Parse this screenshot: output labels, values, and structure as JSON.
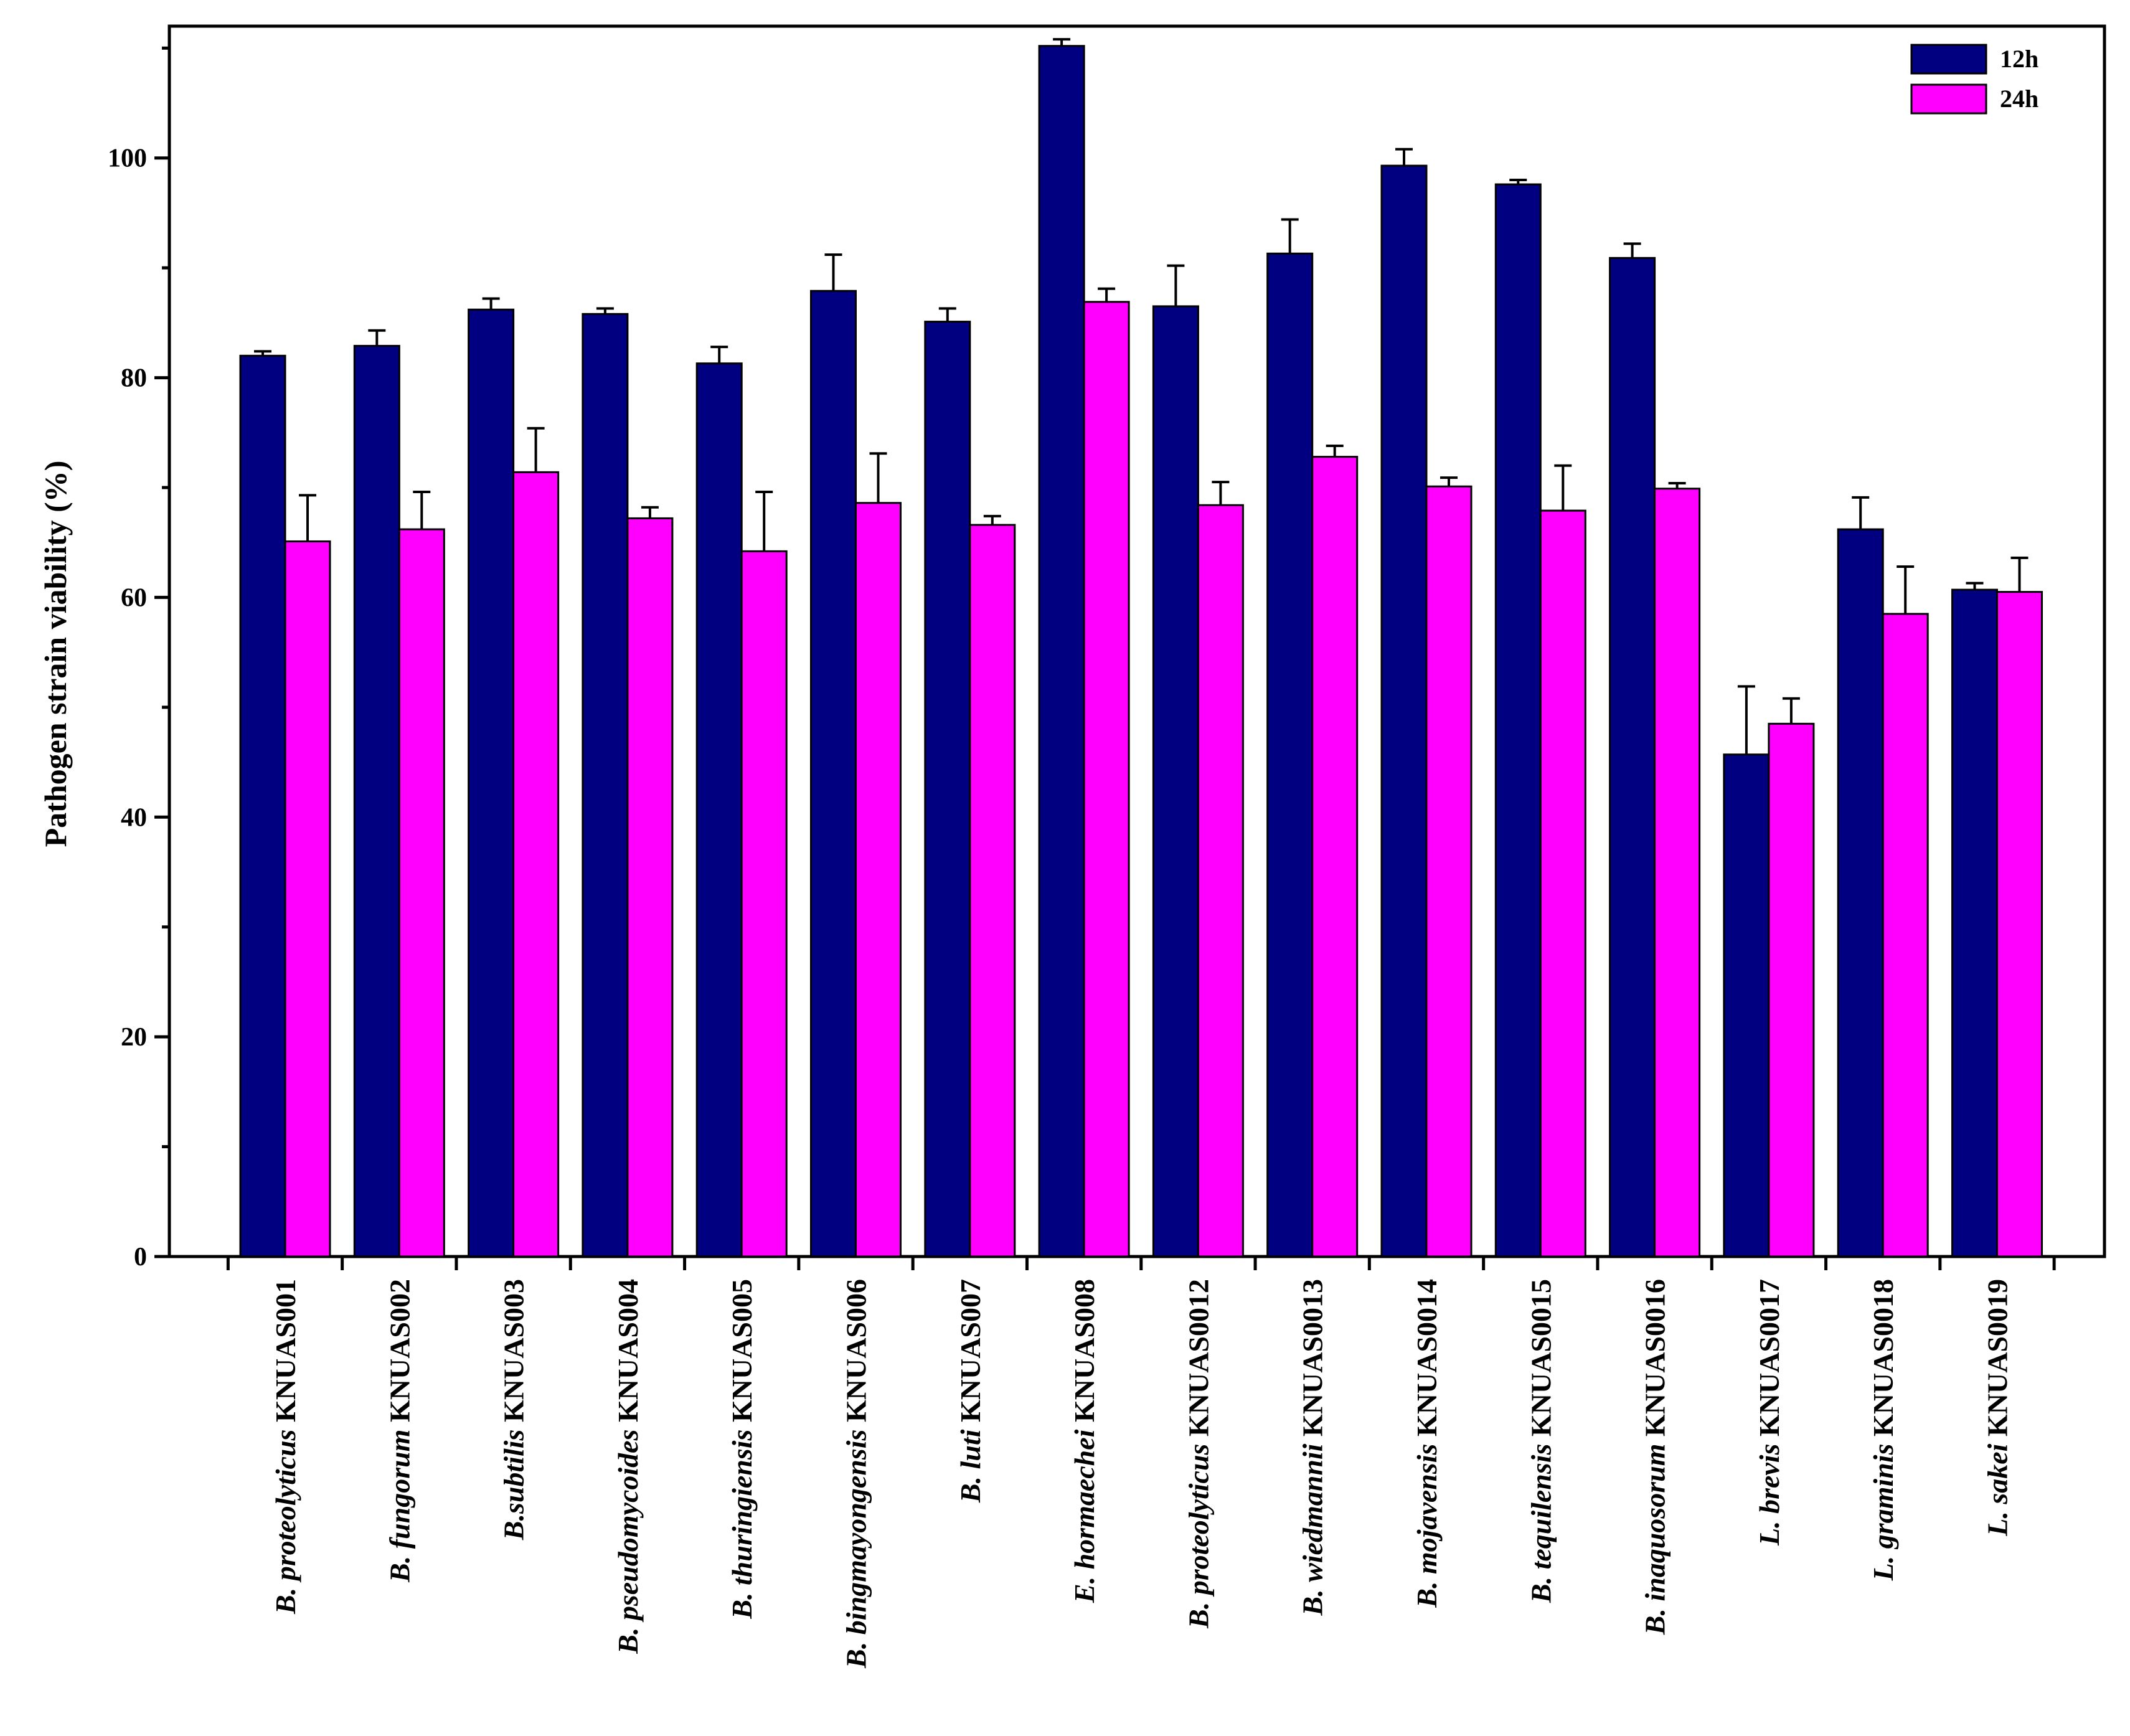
{
  "chart_data": {
    "type": "bar",
    "ylabel": "Pathogen strain viability (%)",
    "xlabel": "",
    "ylim": [
      0,
      112
    ],
    "yticks": [
      0,
      20,
      40,
      60,
      80,
      100
    ],
    "grid": false,
    "legend_position": "top-right",
    "categories": [
      {
        "species": "B. proteolyticus",
        "strain": "KNUAS001"
      },
      {
        "species": "B. fungorum",
        "strain": "KNUAS002"
      },
      {
        "species": "B.subtilis",
        "strain": "KNUAS003"
      },
      {
        "species": "B. pseudomycoides",
        "strain": "KNUAS004"
      },
      {
        "species": "B. thuringiensis",
        "strain": "KNUAS005"
      },
      {
        "species": "B. bingmayongensis",
        "strain": "KNUAS006"
      },
      {
        "species": "B. luti",
        "strain": "KNUAS007"
      },
      {
        "species": "E. hormaechei",
        "strain": "KNUAS008"
      },
      {
        "species": "B. proteolyticus",
        "strain": "KNUAS0012"
      },
      {
        "species": "B. wiedmannii",
        "strain": "KNUAS0013"
      },
      {
        "species": "B. mojavensis",
        "strain": "KNUAS0014"
      },
      {
        "species": "B. tequilensis",
        "strain": "KNUAS0015"
      },
      {
        "species": "B. inaquosorum",
        "strain": "KNUAS0016"
      },
      {
        "species": "L. brevis",
        "strain": "KNUAS0017"
      },
      {
        "species": "L. graminis",
        "strain": "KNUAS0018"
      },
      {
        "species": "L. sakei",
        "strain": "KNUAS0019"
      }
    ],
    "series": [
      {
        "name": "12h",
        "color": "#000080",
        "values": [
          82.0,
          82.9,
          86.2,
          85.8,
          81.3,
          87.9,
          85.1,
          110.2,
          86.5,
          91.3,
          99.3,
          97.6,
          90.9,
          45.7,
          66.2,
          60.7
        ],
        "errors": [
          0.4,
          1.4,
          1.0,
          0.5,
          1.5,
          3.3,
          1.2,
          0.6,
          3.7,
          3.1,
          1.5,
          0.4,
          1.3,
          6.2,
          2.9,
          0.6
        ]
      },
      {
        "name": "24h",
        "color": "#ff00ff",
        "values": [
          65.1,
          66.2,
          71.4,
          67.2,
          64.2,
          68.6,
          66.6,
          86.9,
          68.4,
          72.8,
          70.1,
          67.9,
          69.9,
          48.5,
          58.5,
          60.5
        ],
        "errors": [
          4.2,
          3.4,
          4.0,
          1.0,
          5.4,
          4.5,
          0.8,
          1.2,
          2.1,
          1.0,
          0.8,
          4.1,
          0.5,
          2.3,
          4.3,
          3.1
        ]
      }
    ]
  }
}
